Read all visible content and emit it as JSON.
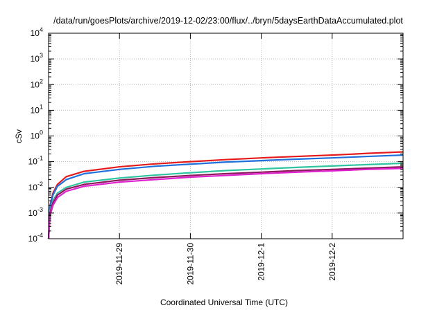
{
  "chart_data": {
    "type": "line",
    "title": "/data/run/goesPlots/archive/2019-12-02/23:00/flux/../bryn/5daysEarthDataAccumulated.plot",
    "xlabel": "Coordinated Universal Time (UTC)",
    "ylabel": "cSv",
    "x_axis": {
      "type": "date",
      "range": [
        "2019-11-28T00:00",
        "2019-12-03T00:00"
      ],
      "ticks": [
        "2019-11-29",
        "2019-11-30",
        "2019-12-1",
        "2019-12-2"
      ]
    },
    "y_axis": {
      "scale": "log",
      "range": [
        0.0001,
        10000
      ],
      "ticks": [
        {
          "base": "10",
          "exp": "-4"
        },
        {
          "base": "10",
          "exp": "-3"
        },
        {
          "base": "10",
          "exp": "-2"
        },
        {
          "base": "10",
          "exp": "-1"
        },
        {
          "base": "10",
          "exp": "0"
        },
        {
          "base": "10",
          "exp": "1"
        },
        {
          "base": "10",
          "exp": "2"
        },
        {
          "base": "10",
          "exp": "3"
        },
        {
          "base": "10",
          "exp": "4"
        }
      ]
    },
    "grid": true,
    "legend": "none",
    "series": [
      {
        "color": "#e41a1c",
        "x": [
          "2019-11-28T00:00",
          "2019-11-28T00:30",
          "2019-11-28T01:30",
          "2019-11-28T03:00",
          "2019-11-28T06:00",
          "2019-11-28T12:00",
          "2019-11-29T00:00",
          "2019-11-29T12:00",
          "2019-11-30T00:00",
          "2019-11-30T12:00",
          "2019-12-01T00:00",
          "2019-12-01T12:00",
          "2019-12-02T00:00",
          "2019-12-02T12:00",
          "2019-12-03T00:00"
        ],
        "values": [
          0.0001,
          0.002,
          0.006,
          0.013,
          0.026,
          0.042,
          0.063,
          0.082,
          0.1,
          0.12,
          0.14,
          0.16,
          0.18,
          0.21,
          0.24
        ]
      },
      {
        "color": "#1f6fdc",
        "x": [
          "2019-11-28T00:00",
          "2019-11-28T00:30",
          "2019-11-28T01:30",
          "2019-11-28T03:00",
          "2019-11-28T06:00",
          "2019-11-28T12:00",
          "2019-11-29T00:00",
          "2019-11-29T12:00",
          "2019-11-30T00:00",
          "2019-11-30T12:00",
          "2019-12-01T00:00",
          "2019-12-01T12:00",
          "2019-12-02T00:00",
          "2019-12-02T12:00",
          "2019-12-03T00:00"
        ],
        "values": [
          0.0001,
          0.0018,
          0.005,
          0.011,
          0.02,
          0.034,
          0.05,
          0.066,
          0.08,
          0.096,
          0.11,
          0.125,
          0.14,
          0.16,
          0.18
        ]
      },
      {
        "color": "#2ec4a0",
        "x": [
          "2019-11-28T00:00",
          "2019-11-28T00:30",
          "2019-11-28T01:30",
          "2019-11-28T03:00",
          "2019-11-28T06:00",
          "2019-11-28T12:00",
          "2019-11-29T00:00",
          "2019-11-29T12:00",
          "2019-11-30T00:00",
          "2019-11-30T12:00",
          "2019-12-01T00:00",
          "2019-12-01T12:00",
          "2019-12-02T00:00",
          "2019-12-02T12:00",
          "2019-12-03T00:00"
        ],
        "values": [
          0.0001,
          0.0012,
          0.003,
          0.006,
          0.01,
          0.016,
          0.023,
          0.03,
          0.037,
          0.045,
          0.052,
          0.06,
          0.068,
          0.077,
          0.087
        ]
      },
      {
        "color": "#8b1a5a",
        "x": [
          "2019-11-28T00:00",
          "2019-11-28T00:30",
          "2019-11-28T01:30",
          "2019-11-28T03:00",
          "2019-11-28T06:00",
          "2019-11-28T12:00",
          "2019-11-29T00:00",
          "2019-11-29T12:00",
          "2019-11-30T00:00",
          "2019-11-30T12:00",
          "2019-12-01T00:00",
          "2019-12-01T12:00",
          "2019-12-02T00:00",
          "2019-12-02T12:00",
          "2019-12-03T00:00"
        ],
        "values": [
          0.0001,
          0.001,
          0.0025,
          0.005,
          0.0085,
          0.013,
          0.019,
          0.024,
          0.029,
          0.034,
          0.039,
          0.045,
          0.05,
          0.056,
          0.063
        ]
      },
      {
        "color": "#e020d0",
        "x": [
          "2019-11-28T00:00",
          "2019-11-28T00:30",
          "2019-11-28T01:30",
          "2019-11-28T03:00",
          "2019-11-28T06:00",
          "2019-11-28T12:00",
          "2019-11-29T00:00",
          "2019-11-29T12:00",
          "2019-11-30T00:00",
          "2019-11-30T12:00",
          "2019-12-01T00:00",
          "2019-12-01T12:00",
          "2019-12-02T00:00",
          "2019-12-02T12:00",
          "2019-12-03T00:00"
        ],
        "values": [
          0.0001,
          0.0008,
          0.002,
          0.004,
          0.007,
          0.011,
          0.016,
          0.02,
          0.025,
          0.029,
          0.034,
          0.039,
          0.044,
          0.05,
          0.055
        ]
      }
    ]
  }
}
